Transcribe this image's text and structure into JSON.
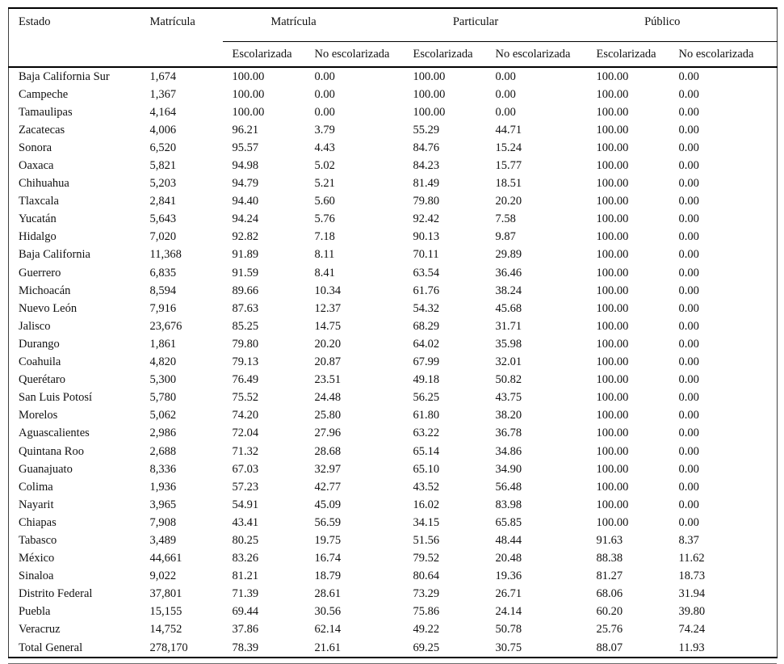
{
  "table": {
    "header": {
      "estado": "Estado",
      "matricula": "Matrícula",
      "groups": [
        "Matrícula",
        "Particular",
        "Público"
      ],
      "sub": [
        "Escolarizada",
        "No escolarizada"
      ]
    },
    "rows": [
      [
        "Baja California Sur",
        "1,674",
        "100.00",
        "0.00",
        "100.00",
        "0.00",
        "100.00",
        "0.00"
      ],
      [
        "Campeche",
        "1,367",
        "100.00",
        "0.00",
        "100.00",
        "0.00",
        "100.00",
        "0.00"
      ],
      [
        "Tamaulipas",
        "4,164",
        "100.00",
        "0.00",
        "100.00",
        "0.00",
        "100.00",
        "0.00"
      ],
      [
        "Zacatecas",
        "4,006",
        "96.21",
        "3.79",
        "55.29",
        "44.71",
        "100.00",
        "0.00"
      ],
      [
        "Sonora",
        "6,520",
        "95.57",
        "4.43",
        "84.76",
        "15.24",
        "100.00",
        "0.00"
      ],
      [
        "Oaxaca",
        "5,821",
        "94.98",
        "5.02",
        "84.23",
        "15.77",
        "100.00",
        "0.00"
      ],
      [
        "Chihuahua",
        "5,203",
        "94.79",
        "5.21",
        "81.49",
        "18.51",
        "100.00",
        "0.00"
      ],
      [
        "Tlaxcala",
        "2,841",
        "94.40",
        "5.60",
        "79.80",
        "20.20",
        "100.00",
        "0.00"
      ],
      [
        "Yucatán",
        "5,643",
        "94.24",
        "5.76",
        "92.42",
        "7.58",
        "100.00",
        "0.00"
      ],
      [
        "Hidalgo",
        "7,020",
        "92.82",
        "7.18",
        "90.13",
        "9.87",
        "100.00",
        "0.00"
      ],
      [
        "Baja California",
        "11,368",
        "91.89",
        "8.11",
        "70.11",
        "29.89",
        "100.00",
        "0.00"
      ],
      [
        "Guerrero",
        "6,835",
        "91.59",
        "8.41",
        "63.54",
        "36.46",
        "100.00",
        "0.00"
      ],
      [
        "Michoacán",
        "8,594",
        "89.66",
        "10.34",
        "61.76",
        "38.24",
        "100.00",
        "0.00"
      ],
      [
        "Nuevo León",
        "7,916",
        "87.63",
        "12.37",
        "54.32",
        "45.68",
        "100.00",
        "0.00"
      ],
      [
        "Jalisco",
        "23,676",
        "85.25",
        "14.75",
        "68.29",
        "31.71",
        "100.00",
        "0.00"
      ],
      [
        "Durango",
        "1,861",
        "79.80",
        "20.20",
        "64.02",
        "35.98",
        "100.00",
        "0.00"
      ],
      [
        "Coahuila",
        "4,820",
        "79.13",
        "20.87",
        "67.99",
        "32.01",
        "100.00",
        "0.00"
      ],
      [
        "Querétaro",
        "5,300",
        "76.49",
        "23.51",
        "49.18",
        "50.82",
        "100.00",
        "0.00"
      ],
      [
        "San Luis Potosí",
        "5,780",
        "75.52",
        "24.48",
        "56.25",
        "43.75",
        "100.00",
        "0.00"
      ],
      [
        "Morelos",
        "5,062",
        "74.20",
        "25.80",
        "61.80",
        "38.20",
        "100.00",
        "0.00"
      ],
      [
        "Aguascalientes",
        "2,986",
        "72.04",
        "27.96",
        "63.22",
        "36.78",
        "100.00",
        "0.00"
      ],
      [
        "Quintana Roo",
        "2,688",
        "71.32",
        "28.68",
        "65.14",
        "34.86",
        "100.00",
        "0.00"
      ],
      [
        "Guanajuato",
        "8,336",
        "67.03",
        "32.97",
        "65.10",
        "34.90",
        "100.00",
        "0.00"
      ],
      [
        "Colima",
        "1,936",
        "57.23",
        "42.77",
        "43.52",
        "56.48",
        "100.00",
        "0.00"
      ],
      [
        "Nayarit",
        "3,965",
        "54.91",
        "45.09",
        "16.02",
        "83.98",
        "100.00",
        "0.00"
      ],
      [
        "Chiapas",
        "7,908",
        "43.41",
        "56.59",
        "34.15",
        "65.85",
        "100.00",
        "0.00"
      ],
      [
        "Tabasco",
        "3,489",
        "80.25",
        "19.75",
        "51.56",
        "48.44",
        "91.63",
        "8.37"
      ],
      [
        "México",
        "44,661",
        "83.26",
        "16.74",
        "79.52",
        "20.48",
        "88.38",
        "11.62"
      ],
      [
        "Sinaloa",
        "9,022",
        "81.21",
        "18.79",
        "80.64",
        "19.36",
        "81.27",
        "18.73"
      ],
      [
        "Distrito Federal",
        "37,801",
        "71.39",
        "28.61",
        "73.29",
        "26.71",
        "68.06",
        "31.94"
      ],
      [
        "Puebla",
        "15,155",
        "69.44",
        "30.56",
        "75.86",
        "24.14",
        "60.20",
        "39.80"
      ],
      [
        "Veracruz",
        "14,752",
        "37.86",
        "62.14",
        "49.22",
        "50.78",
        "25.76",
        "74.24"
      ],
      [
        "Total General",
        "278,170",
        "78.39",
        "21.61",
        "69.25",
        "30.75",
        "88.07",
        "11.93"
      ]
    ]
  }
}
